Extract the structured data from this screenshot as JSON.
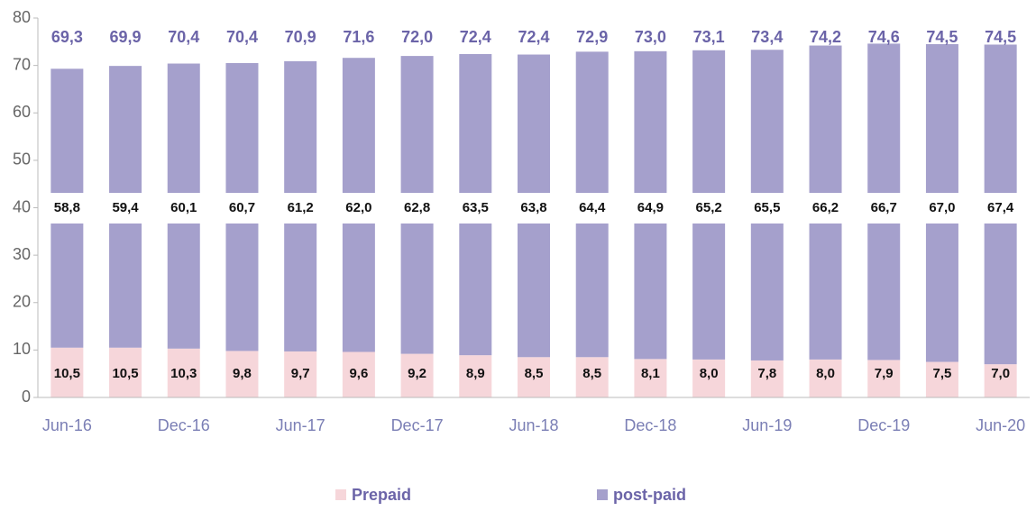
{
  "chart_data": {
    "type": "stacked_bar",
    "categories": [
      "Jun-16",
      null,
      "Dec-16",
      null,
      "Jun-17",
      null,
      "Dec-17",
      null,
      "Jun-18",
      null,
      "Dec-18",
      null,
      "Jun-19",
      null,
      "Dec-19",
      null,
      "Jun-20"
    ],
    "series": [
      {
        "name": "Prepaid",
        "color": "#f6d6da",
        "values": [
          10.5,
          10.5,
          10.3,
          9.8,
          9.7,
          9.6,
          9.2,
          8.9,
          8.5,
          8.5,
          8.1,
          8.0,
          7.8,
          8.0,
          7.9,
          7.5,
          7.0
        ],
        "value_labels": [
          "10,5",
          "10,5",
          "10,3",
          "9,8",
          "9,7",
          "9,6",
          "9,2",
          "8,9",
          "8,5",
          "8,5",
          "8,1",
          "8,0",
          "7,8",
          "8,0",
          "7,9",
          "7,5",
          "7,0"
        ]
      },
      {
        "name": "post-paid",
        "color": "#a5a0cc",
        "values": [
          58.8,
          59.4,
          60.1,
          60.7,
          61.2,
          62.0,
          62.8,
          63.5,
          63.8,
          64.4,
          64.9,
          65.2,
          65.5,
          66.2,
          66.7,
          67.0,
          67.4
        ],
        "value_labels": [
          "58,8",
          "59,4",
          "60,1",
          "60,7",
          "61,2",
          "62,0",
          "62,8",
          "63,5",
          "63,8",
          "64,4",
          "64,9",
          "65,2",
          "65,5",
          "66,2",
          "66,7",
          "67,0",
          "67,4"
        ]
      }
    ],
    "totals": {
      "values": [
        69.3,
        69.9,
        70.4,
        70.4,
        70.9,
        71.6,
        72.0,
        72.4,
        72.4,
        72.9,
        73.0,
        73.1,
        73.4,
        74.2,
        74.6,
        74.5,
        74.5
      ],
      "value_labels": [
        "69,3",
        "69,9",
        "70,4",
        "70,4",
        "70,9",
        "71,6",
        "72,0",
        "72,4",
        "72,4",
        "72,9",
        "73,0",
        "73,1",
        "73,4",
        "74,2",
        "74,6",
        "74,5",
        "74,5"
      ]
    },
    "ylim": [
      0,
      80
    ],
    "yticks": [
      0,
      10,
      20,
      30,
      40,
      50,
      60,
      70,
      80
    ],
    "grid": false,
    "legend": "bottom"
  }
}
